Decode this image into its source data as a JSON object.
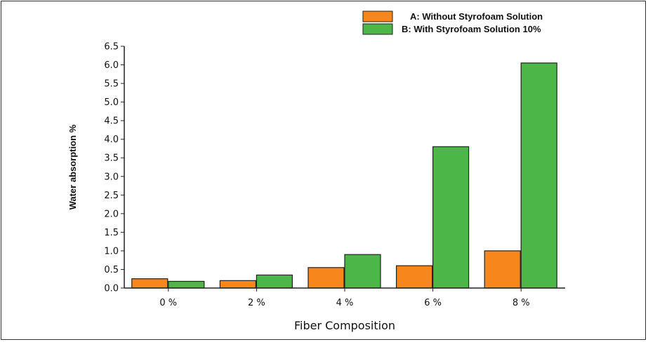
{
  "chart_data": {
    "type": "bar",
    "title": "",
    "xlabel": "Fiber Composition",
    "ylabel": "Water absorption %",
    "categories": [
      "0 %",
      "2 %",
      "4 %",
      "6 %",
      "8 %"
    ],
    "series": [
      {
        "name": "A: Without Styrofoam Solution",
        "color": "#f7861c",
        "values": [
          0.25,
          0.2,
          0.55,
          0.6,
          1.0
        ]
      },
      {
        "name": "B: With Styrofoam Solution 10%",
        "color": "#4cb748",
        "values": [
          0.18,
          0.35,
          0.9,
          3.8,
          6.05
        ]
      }
    ],
    "yticks": [
      "0.0",
      "0.5",
      "1.0",
      "1.5",
      "2.0",
      "2.5",
      "3.0",
      "3.5",
      "4.0",
      "4.5",
      "5.0",
      "5.5",
      "6.0",
      "6.5"
    ],
    "ylim": [
      0,
      6.5
    ],
    "grid": false,
    "legend_position": "top-right"
  }
}
